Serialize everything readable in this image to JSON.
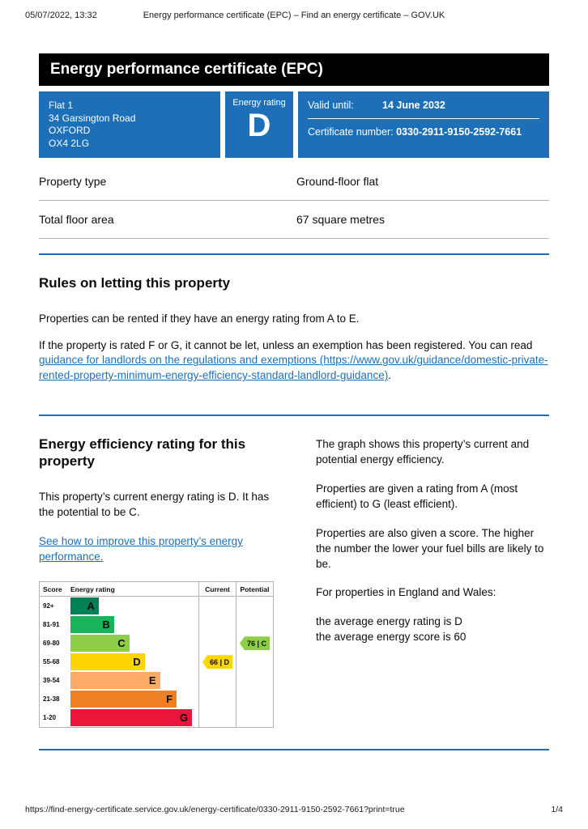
{
  "print_header": {
    "datetime": "05/07/2022, 13:32",
    "title": "Energy performance certificate (EPC) – Find an energy certificate – GOV.UK"
  },
  "banner": {
    "title": "Energy performance certificate (EPC)"
  },
  "summary": {
    "address_lines": [
      "Flat 1",
      "34 Garsington Road",
      "OXFORD",
      "OX4 2LG"
    ],
    "rating_label": "Energy rating",
    "rating_value": "D",
    "valid_until_label": "Valid until:",
    "valid_until_value": "14 June 2032",
    "certificate_number_label": "Certificate number:",
    "certificate_number_value": "0330-2911-9150-2592-7661"
  },
  "property_facts": [
    {
      "label": "Property type",
      "value": "Ground-floor flat"
    },
    {
      "label": "Total floor area",
      "value": "67 square metres"
    }
  ],
  "rules_section": {
    "heading": "Rules on letting this property",
    "para1": "Properties can be rented if they have an energy rating from A to E.",
    "para2_before_link": "If the property is rated F or G, it cannot be let, unless an exemption has been registered. You can read ",
    "link_text": "guidance for landlords on the regulations and exemptions (https://www.gov.uk/guidance/domestic-private-rented-property-minimum-energy-efficiency-standard-landlord-guidance)",
    "para2_after_link": "."
  },
  "rating_section": {
    "heading": "Energy efficiency rating for this property",
    "para1": "This property’s current energy rating is D. It has the potential to be C.",
    "link_text": "See how to improve this property’s energy performance.",
    "right_paras": [
      "The graph shows this property’s current and potential energy efficiency.",
      "Properties are given a rating from A (most efficient) to G (least efficient).",
      "Properties are also given a score. The higher the number the lower your fuel bills are likely to be.",
      "For properties in England and Wales:",
      "the average energy rating is D",
      "the average energy score is 60"
    ]
  },
  "chart_data": {
    "type": "bar",
    "orientation": "horizontal",
    "title": "Energy efficiency rating",
    "columns": [
      "Score",
      "Energy rating",
      "Current",
      "Potential"
    ],
    "bands": [
      {
        "score": "92+",
        "letter": "A",
        "color": "#008054",
        "width_pct": 22
      },
      {
        "score": "81-91",
        "letter": "B",
        "color": "#19b459",
        "width_pct": 34
      },
      {
        "score": "69-80",
        "letter": "C",
        "color": "#8dce46",
        "width_pct": 46
      },
      {
        "score": "55-68",
        "letter": "D",
        "color": "#ffd500",
        "width_pct": 58
      },
      {
        "score": "39-54",
        "letter": "E",
        "color": "#fcaa65",
        "width_pct": 70
      },
      {
        "score": "21-38",
        "letter": "F",
        "color": "#ef8023",
        "width_pct": 83
      },
      {
        "score": "1-20",
        "letter": "G",
        "color": "#e9153b",
        "width_pct": 95
      }
    ],
    "current": {
      "score": 66,
      "letter": "D",
      "display": "66 | D",
      "band_index": 3,
      "color": "#ffd500"
    },
    "potential": {
      "score": 76,
      "letter": "C",
      "display": "76 | C",
      "band_index": 2,
      "color": "#8dce46"
    }
  },
  "print_footer": {
    "url": "https://find-energy-certificate.service.gov.uk/energy-certificate/0330-2911-9150-2592-7661?print=true",
    "page": "1/4"
  }
}
